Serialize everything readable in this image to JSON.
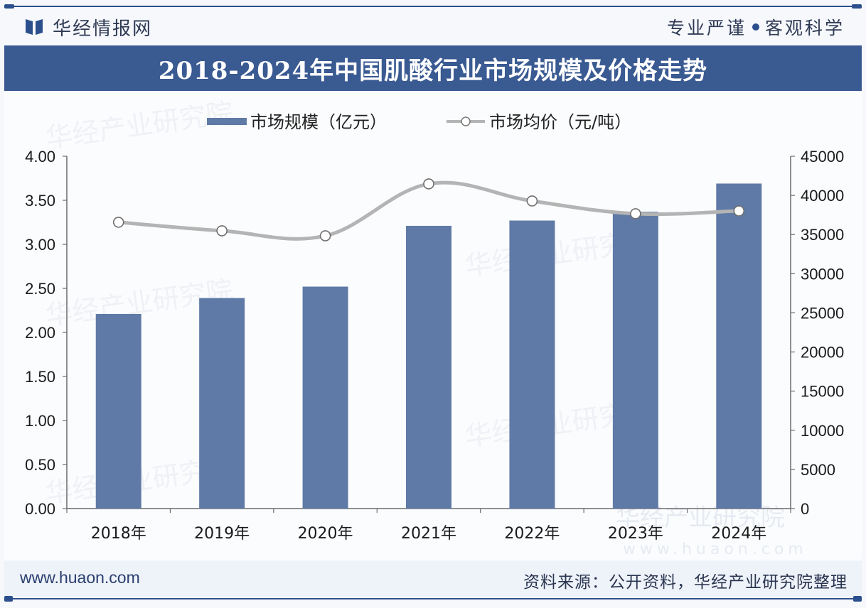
{
  "header": {
    "brand_name": "华经情报网",
    "brand_logo_icon": "book-logo-icon",
    "slogan_left": "专业严谨",
    "slogan_right": "客观科学",
    "title": "2018-2024年中国肌酸行业市场规模及价格走势"
  },
  "watermark": {
    "text": "华经产业研究院",
    "url": "www.huaon.com"
  },
  "colors": {
    "brand_blue": "#2b4f8c",
    "title_bar": "#3a5a92",
    "bar": "#5f7aa6",
    "line": "#b4b4b4",
    "marker_stroke": "#6f6f6f",
    "axis": "#6b6b6b"
  },
  "chart_data": {
    "type": "bar+line",
    "title": "2018-2024年中国肌酸行业市场规模及价格走势",
    "categories": [
      "2018年",
      "2019年",
      "2020年",
      "2021年",
      "2022年",
      "2023年",
      "2024年"
    ],
    "series": [
      {
        "name": "市场规模（亿元）",
        "type": "bar",
        "axis": "left",
        "values": [
          2.21,
          2.39,
          2.52,
          3.21,
          3.27,
          3.37,
          3.69
        ]
      },
      {
        "name": "市场均价（元/吨）",
        "type": "line",
        "axis": "right",
        "smooth": true,
        "values": [
          36570,
          35480,
          34840,
          41470,
          39290,
          37660,
          38020
        ]
      }
    ],
    "y_left": {
      "range": [
        0,
        4
      ],
      "ticks": [
        "0.00",
        "0.50",
        "1.00",
        "1.50",
        "2.00",
        "2.50",
        "3.00",
        "3.50",
        "4.00"
      ]
    },
    "y_right": {
      "range": [
        0,
        45000
      ],
      "ticks": [
        "0",
        "5000",
        "10000",
        "15000",
        "20000",
        "25000",
        "30000",
        "35000",
        "40000",
        "45000"
      ]
    },
    "xlabel": "",
    "ylabel_left": "",
    "ylabel_right": "",
    "legend_position": "top-center",
    "grid": false
  },
  "footer": {
    "url": "www.huaon.com",
    "source": "资料来源：公开资料，华经产业研究院整理"
  }
}
